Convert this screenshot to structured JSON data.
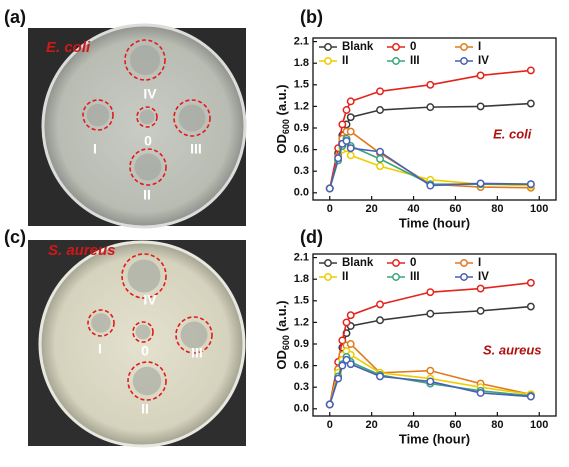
{
  "photos": [
    {
      "label": "(a)",
      "organism": "E. coli",
      "zones": [
        "IV",
        "I",
        "0",
        "III",
        "II"
      ]
    },
    {
      "label": "(c)",
      "organism": "S. aureus",
      "zones": [
        "IV",
        "I",
        "0",
        "III",
        "II"
      ]
    }
  ],
  "chart_data": [
    {
      "type": "line",
      "label": "(b)",
      "xlabel": "Time (hour)",
      "ylabel": "OD",
      "ylabel_sub": "600",
      "ylabel_unit": " (a.u.)",
      "annotation": "E. coli",
      "legend": "upper left",
      "x": [
        0,
        4,
        6,
        8,
        10,
        24,
        48,
        72,
        96
      ],
      "series": [
        {
          "name": "Blank",
          "color": "#3a3a3a",
          "values": [
            0.06,
            0.55,
            0.8,
            0.95,
            1.05,
            1.15,
            1.19,
            1.2,
            1.24
          ]
        },
        {
          "name": "0",
          "color": "#e5231b",
          "values": [
            0.06,
            0.62,
            0.95,
            1.15,
            1.27,
            1.41,
            1.5,
            1.63,
            1.7
          ]
        },
        {
          "name": "I",
          "color": "#e07a1c",
          "values": [
            0.06,
            0.5,
            0.75,
            0.85,
            0.85,
            0.55,
            0.12,
            0.08,
            0.07
          ]
        },
        {
          "name": "II",
          "color": "#f0cc00",
          "values": [
            0.06,
            0.45,
            0.6,
            0.62,
            0.52,
            0.37,
            0.18,
            0.12,
            0.1
          ]
        },
        {
          "name": "III",
          "color": "#3aa67a",
          "values": [
            0.06,
            0.45,
            0.65,
            0.75,
            0.65,
            0.47,
            0.12,
            0.12,
            0.12
          ]
        },
        {
          "name": "IV",
          "color": "#4a5fb5",
          "values": [
            0.06,
            0.48,
            0.68,
            0.72,
            0.62,
            0.57,
            0.1,
            0.13,
            0.12
          ]
        }
      ],
      "xlim": [
        -8,
        108
      ],
      "xticks": [
        0,
        20,
        40,
        60,
        80,
        100
      ],
      "ylim": [
        -0.1,
        2.15
      ],
      "yticks": [
        {
          "value": 0,
          "label": "0.0"
        },
        0.3,
        0.6,
        0.9,
        1.2,
        1.5,
        1.8,
        2.1
      ]
    },
    {
      "type": "line",
      "label": "(d)",
      "xlabel": "Time (hour)",
      "ylabel": "OD",
      "ylabel_sub": "600",
      "ylabel_unit": " (a.u.)",
      "annotation": "S. aureus",
      "legend": "upper left",
      "x": [
        0,
        4,
        6,
        8,
        10,
        24,
        48,
        72,
        96
      ],
      "series": [
        {
          "name": "Blank",
          "color": "#3a3a3a",
          "values": [
            0.06,
            0.55,
            0.85,
            1.05,
            1.15,
            1.23,
            1.32,
            1.36,
            1.42
          ]
        },
        {
          "name": "0",
          "color": "#e5231b",
          "values": [
            0.06,
            0.65,
            0.95,
            1.2,
            1.3,
            1.45,
            1.62,
            1.67,
            1.75
          ]
        },
        {
          "name": "I",
          "color": "#e07a1c",
          "values": [
            0.06,
            0.55,
            0.75,
            0.88,
            0.9,
            0.5,
            0.53,
            0.35,
            0.2
          ]
        },
        {
          "name": "II",
          "color": "#f0cc00",
          "values": [
            0.06,
            0.5,
            0.68,
            0.8,
            0.75,
            0.5,
            0.42,
            0.3,
            0.2
          ]
        },
        {
          "name": "III",
          "color": "#3aa67a",
          "values": [
            0.06,
            0.45,
            0.62,
            0.72,
            0.65,
            0.47,
            0.35,
            0.25,
            0.18
          ]
        },
        {
          "name": "IV",
          "color": "#4a5fb5",
          "values": [
            0.06,
            0.42,
            0.6,
            0.68,
            0.62,
            0.45,
            0.38,
            0.22,
            0.17
          ]
        }
      ],
      "xlim": [
        -8,
        108
      ],
      "xticks": [
        0,
        20,
        40,
        60,
        80,
        100
      ],
      "ylim": [
        -0.1,
        2.15
      ],
      "yticks": [
        {
          "value": 0,
          "label": "0.0"
        },
        0.3,
        0.6,
        0.9,
        1.2,
        1.5,
        1.8,
        2.1
      ]
    }
  ]
}
